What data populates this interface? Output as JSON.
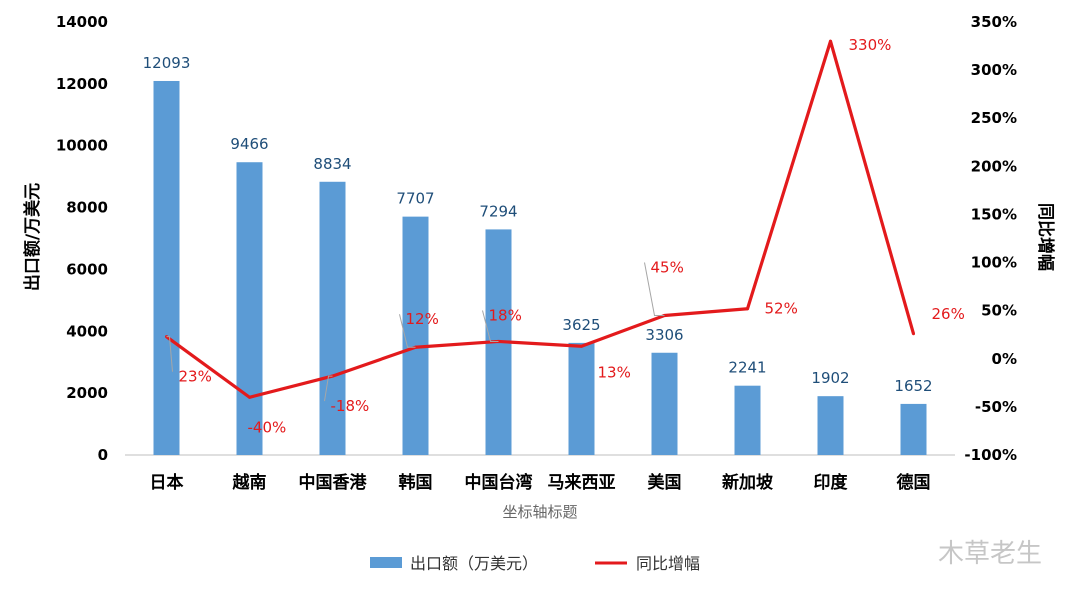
{
  "chart_data": {
    "type": "bar",
    "title": "",
    "xlabel": "坐标轴标题",
    "ylabel": "出口额/万美元",
    "y2label": "同比增幅",
    "categories": [
      "日本",
      "越南",
      "中国香港",
      "韩国",
      "中国台湾",
      "马来西亚",
      "美国",
      "新加坡",
      "印度",
      "德国"
    ],
    "series": [
      {
        "name": "出口额（万美元）",
        "kind": "bar",
        "axis": "left",
        "color": "#5b9bd5",
        "values": [
          12093,
          9466,
          8834,
          7707,
          7294,
          3625,
          3306,
          2241,
          1902,
          1652
        ],
        "labels": [
          "12093",
          "9466",
          "8834",
          "7707",
          "7294",
          "3625",
          "3306",
          "2241",
          "1902",
          "1652"
        ]
      },
      {
        "name": "同比增幅",
        "kind": "line",
        "axis": "right",
        "color": "#e31a1c",
        "values": [
          23,
          -40,
          -18,
          12,
          18,
          13,
          45,
          52,
          330,
          26
        ],
        "labels": [
          "23%",
          "-40%",
          "-18%",
          "12%",
          "18%",
          "13%",
          "45%",
          "52%",
          "330%",
          "26%"
        ]
      }
    ],
    "ylim": [
      0,
      14000
    ],
    "yticks": [
      "0",
      "2000",
      "4000",
      "6000",
      "8000",
      "10000",
      "12000",
      "14000"
    ],
    "y2lim": [
      -100,
      350
    ],
    "y2ticks": [
      "-100%",
      "-50%",
      "0%",
      "50%",
      "100%",
      "150%",
      "200%",
      "250%",
      "300%",
      "350%"
    ],
    "grid": false,
    "legend": "bottom"
  },
  "watermark": "木草老生"
}
